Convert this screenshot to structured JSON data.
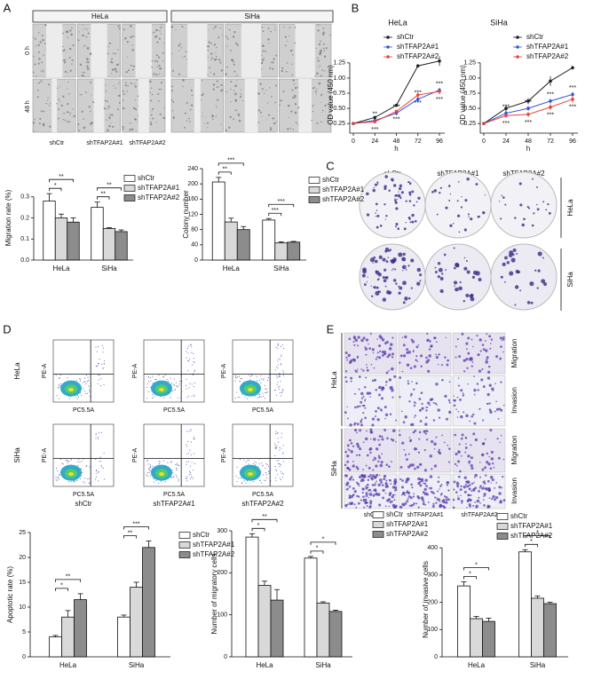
{
  "panel_labels": [
    "A",
    "B",
    "C",
    "D",
    "E"
  ],
  "wound_healing": {
    "cell_lines": [
      "HeLa",
      "SiHa"
    ],
    "timepoints": [
      "0 h",
      "48 h"
    ],
    "groups": [
      "shCtr",
      "shTFAP2A#1",
      "shTFAP2A#2"
    ]
  },
  "colony_images": {
    "cell_lines": [
      "HeLa",
      "SiHa"
    ],
    "groups": [
      "shCtr",
      "shTFAP2A#1",
      "shTFAP2A#2"
    ]
  },
  "flow_cytometry": {
    "cell_lines": [
      "HeLa",
      "SiHa"
    ],
    "x_axis": "PC5.5A",
    "y_axis": "PE-A",
    "groups": [
      "shCtr",
      "shTFAP2A#1",
      "shTFAP2A#2"
    ]
  },
  "transwell": {
    "cell_lines": [
      "HeLa",
      "SiHa"
    ],
    "assays": [
      "Migration",
      "Invasion"
    ],
    "groups": [
      "shCtr",
      "shTFAP2A#1",
      "shTFAP2A#2"
    ]
  },
  "chart_data": [
    {
      "type": "line",
      "title": "HeLa",
      "xlabel": "h",
      "ylabel": "OD value (450 nm)",
      "x": [
        0,
        24,
        48,
        72,
        96
      ],
      "xlim": [
        0,
        96
      ],
      "xticks": [
        0,
        24,
        48,
        72,
        96
      ],
      "ylim": [
        0.15,
        1.35
      ],
      "yticks": [
        0.25,
        {
          "value": 0.5,
          "label": "0.50"
        },
        0.75,
        {
          "value": 1,
          "label": "1.00"
        },
        1.25
      ],
      "series": [
        {
          "name": "shCtr",
          "color": "#222222",
          "values": [
            0.25,
            0.35,
            0.55,
            1.2,
            1.28
          ],
          "errors": [
            0.01,
            0.02,
            0.02,
            0.03,
            0.08
          ]
        },
        {
          "name": "shTFAP2A#1",
          "color": "#3355dd",
          "values": [
            0.25,
            0.3,
            0.42,
            0.65,
            0.8
          ],
          "errors": [
            0.01,
            0.02,
            0.03,
            0.04,
            0.04
          ],
          "significance": [
            null,
            "**",
            "***",
            "***",
            "***"
          ]
        },
        {
          "name": "shTFAP2A#2",
          "color": "#e8413a",
          "values": [
            0.25,
            0.28,
            0.45,
            0.72,
            0.78
          ],
          "errors": [
            0.01,
            0.02,
            0.03,
            0.04,
            0.05
          ],
          "significance": [
            null,
            "***",
            "***",
            "***",
            "***"
          ]
        }
      ]
    },
    {
      "type": "line",
      "title": "SiHa",
      "xlabel": "h",
      "ylabel": "OD value (450 nm)",
      "x": [
        0,
        24,
        48,
        72,
        96
      ],
      "xlim": [
        0,
        96
      ],
      "xticks": [
        0,
        24,
        48,
        72,
        96
      ],
      "ylim": [
        0.15,
        1.35
      ],
      "yticks": [
        0.25,
        {
          "value": 0.5,
          "label": "0.50"
        },
        0.75,
        {
          "value": 1,
          "label": "1.00"
        },
        1.25
      ],
      "series": [
        {
          "name": "shCtr",
          "color": "#222222",
          "values": [
            0.25,
            0.5,
            0.62,
            0.95,
            1.17
          ],
          "errors": [
            0.01,
            0.05,
            0.05,
            0.08,
            0.03
          ]
        },
        {
          "name": "shTFAP2A#1",
          "color": "#3355dd",
          "values": [
            0.25,
            0.42,
            0.5,
            0.62,
            0.73
          ],
          "errors": [
            0.01,
            0.03,
            0.04,
            0.04,
            0.04
          ],
          "significance": [
            null,
            "***",
            "***",
            "***",
            "***"
          ]
        },
        {
          "name": "shTFAP2A#2",
          "color": "#e8413a",
          "values": [
            0.25,
            0.38,
            0.4,
            0.52,
            0.65
          ],
          "errors": [
            0.01,
            0.03,
            0.04,
            0.05,
            0.06
          ],
          "significance": [
            null,
            "***",
            "***",
            "***",
            "***"
          ]
        }
      ]
    },
    {
      "type": "bar",
      "ylabel": "Migration rate (%)",
      "categories": [
        "HeLa",
        "SiHa"
      ],
      "ylim": [
        0,
        0.4
      ],
      "yticks": [
        {
          "value": 0,
          "label": "0.0"
        },
        0.1,
        0.2,
        0.3
      ],
      "series": [
        {
          "name": "shCtr",
          "color": "#ffffff",
          "values": [
            0.28,
            0.25
          ],
          "errors": [
            0.035,
            0.025
          ]
        },
        {
          "name": "shTFAP2A#1",
          "color": "#d9d9d9",
          "values": [
            0.2,
            0.15
          ],
          "errors": [
            0.018,
            0.004
          ],
          "significance": [
            "*",
            "**"
          ]
        },
        {
          "name": "shTFAP2A#2",
          "color": "#8c8c8c",
          "values": [
            0.18,
            0.135
          ],
          "errors": [
            0.02,
            0.008
          ],
          "significance": [
            "**",
            "**"
          ]
        }
      ]
    },
    {
      "type": "bar",
      "ylabel": "Colony number",
      "categories": [
        "HeLa",
        "SiHa"
      ],
      "ylim": [
        0,
        240
      ],
      "yticks": [
        0,
        40,
        80,
        120,
        160,
        200,
        240
      ],
      "series": [
        {
          "name": "shCtr",
          "color": "#ffffff",
          "values": [
            205,
            105
          ],
          "errors": [
            12,
            4
          ]
        },
        {
          "name": "shTFAP2A#1",
          "color": "#d9d9d9",
          "values": [
            100,
            45
          ],
          "errors": [
            10,
            3
          ]
        },
        {
          "name": "shTFAP2A#2",
          "color": "#8c8c8c",
          "values": [
            80,
            47
          ],
          "errors": [
            8,
            2
          ]
        }
      ],
      "brackets": [
        [
          "**",
          "***"
        ],
        [
          "***",
          "***"
        ]
      ]
    },
    {
      "type": "bar",
      "ylabel": "Apoptotic rate (%)",
      "categories": [
        "HeLa",
        "SiHa"
      ],
      "ylim": [
        0,
        25
      ],
      "yticks": [
        0,
        5,
        10,
        15,
        20,
        25
      ],
      "series": [
        {
          "name": "shCtr",
          "color": "#ffffff",
          "values": [
            4,
            8
          ],
          "errors": [
            0.3,
            0.4
          ]
        },
        {
          "name": "shTFAP2A#1",
          "color": "#d9d9d9",
          "values": [
            8,
            14
          ],
          "errors": [
            1.3,
            1
          ]
        },
        {
          "name": "shTFAP2A#2",
          "color": "#8c8c8c",
          "values": [
            11.5,
            22
          ],
          "errors": [
            1.2,
            1.3
          ]
        }
      ],
      "brackets": [
        [
          "*",
          "**"
        ],
        [
          "**",
          "***"
        ]
      ]
    },
    {
      "type": "bar",
      "ylabel": "Number of migratory cells",
      "categories": [
        "HeLa",
        "SiHa"
      ],
      "ylim": [
        0,
        300
      ],
      "yticks": [
        0,
        100,
        200,
        300
      ],
      "series": [
        {
          "name": "shCtr",
          "color": "#ffffff",
          "values": [
            285,
            235
          ],
          "errors": [
            8,
            4
          ]
        },
        {
          "name": "shTFAP2A#1",
          "color": "#d9d9d9",
          "values": [
            170,
            128
          ],
          "errors": [
            10,
            3
          ]
        },
        {
          "name": "shTFAP2A#2",
          "color": "#8c8c8c",
          "values": [
            135,
            108
          ],
          "errors": [
            25,
            3
          ]
        }
      ],
      "brackets": [
        [
          "*",
          "**"
        ],
        [
          "*",
          "*"
        ]
      ]
    },
    {
      "type": "bar",
      "ylabel": "Number of invasive cells",
      "categories": [
        "HeLa",
        "SiHa"
      ],
      "ylim": [
        0,
        420
      ],
      "yticks": [
        0,
        100,
        200,
        300,
        400
      ],
      "series": [
        {
          "name": "shCtr",
          "color": "#ffffff",
          "values": [
            260,
            385
          ],
          "errors": [
            15,
            8
          ]
        },
        {
          "name": "shTFAP2A#1",
          "color": "#d9d9d9",
          "values": [
            140,
            215
          ],
          "errors": [
            8,
            8
          ]
        },
        {
          "name": "shTFAP2A#2",
          "color": "#8c8c8c",
          "values": [
            130,
            195
          ],
          "errors": [
            12,
            5
          ]
        }
      ],
      "brackets": [
        [
          "*",
          "*"
        ],
        [
          "*",
          "*"
        ]
      ]
    }
  ]
}
